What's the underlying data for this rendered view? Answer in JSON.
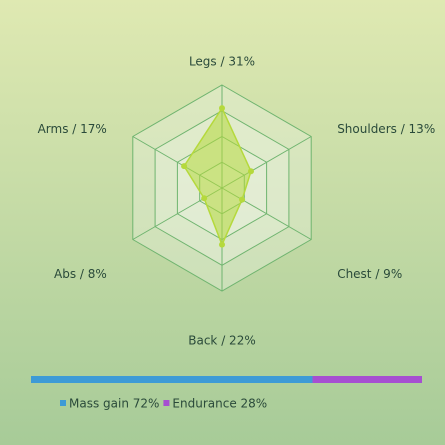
{
  "chart_data": [
    {
      "type": "radar",
      "categories": [
        "Legs / 31%",
        "Shoulders / 13%",
        "Chest / 9%",
        "Back / 22%",
        "Abs / 8%",
        "Arms / 17%"
      ],
      "values": [
        31,
        13,
        9,
        22,
        8,
        17
      ],
      "rlim": [
        0,
        40
      ],
      "rings": 4,
      "color": "#b5d93c"
    },
    {
      "type": "stacked-bar",
      "series": [
        {
          "name": "Mass gain 72%",
          "color": "#3d9bd6",
          "values": [
            72
          ]
        },
        {
          "name": "Endurance 28%",
          "color": "#a64fd1",
          "values": [
            28
          ]
        }
      ]
    }
  ]
}
